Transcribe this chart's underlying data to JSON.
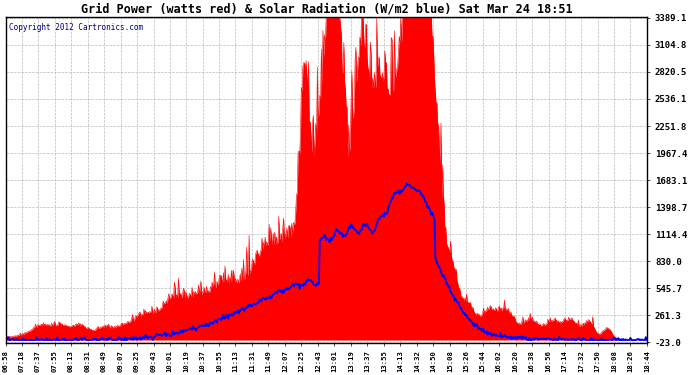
{
  "title": "Grid Power (watts red) & Solar Radiation (W/m2 blue) Sat Mar 24 18:51",
  "copyright": "Copyright 2012 Cartronics.com",
  "y_min": -23.0,
  "y_max": 3389.1,
  "yticks": [
    -23.0,
    261.3,
    545.7,
    830.0,
    1114.4,
    1398.7,
    1683.1,
    1967.4,
    2251.8,
    2536.1,
    2820.5,
    3104.8,
    3389.1
  ],
  "x_labels": [
    "06:58",
    "07:18",
    "07:37",
    "07:55",
    "08:13",
    "08:31",
    "08:49",
    "09:07",
    "09:25",
    "09:43",
    "10:01",
    "10:19",
    "10:37",
    "10:55",
    "11:13",
    "11:31",
    "11:49",
    "12:07",
    "12:25",
    "12:43",
    "13:01",
    "13:19",
    "13:37",
    "13:55",
    "14:13",
    "14:32",
    "14:50",
    "15:08",
    "15:26",
    "15:44",
    "16:02",
    "16:20",
    "16:38",
    "16:56",
    "17:14",
    "17:32",
    "17:50",
    "18:08",
    "18:26",
    "18:44"
  ],
  "bg_color": "#ffffff",
  "plot_bg": "#ffffff",
  "grid_color": "#aaaaaa",
  "red_color": "#ff0000",
  "blue_color": "#0000ff",
  "title_color": "#000000",
  "border_color": "#000000"
}
